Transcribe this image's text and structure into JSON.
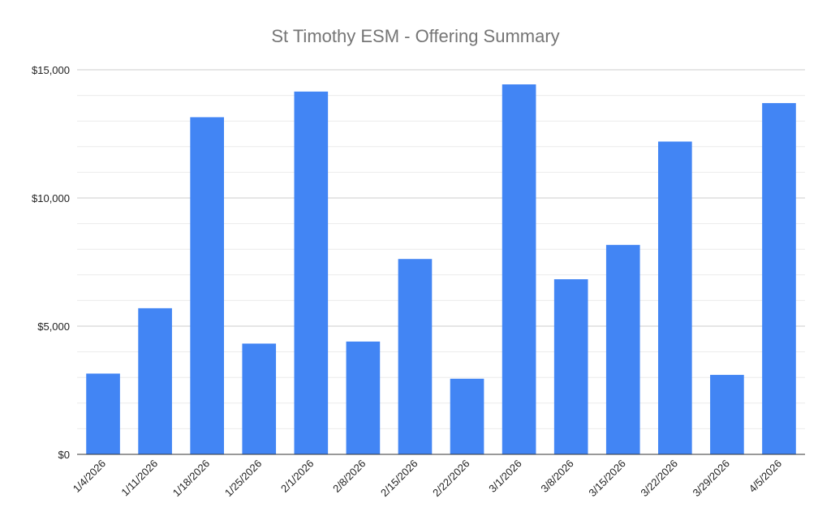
{
  "chart_data": {
    "type": "bar",
    "title": "St Timothy ESM - Offering Summary",
    "xlabel": "",
    "ylabel": "",
    "categories": [
      "1/4/2026",
      "1/11/2026",
      "1/18/2026",
      "1/25/2026",
      "2/1/2026",
      "2/8/2026",
      "2/15/2026",
      "2/22/2026",
      "3/1/2026",
      "3/8/2026",
      "3/15/2026",
      "3/22/2026",
      "3/29/2026",
      "4/5/2026"
    ],
    "values": [
      3150,
      5700,
      13150,
      4320,
      14150,
      4400,
      7620,
      2950,
      14430,
      6830,
      8170,
      12200,
      3100,
      13700
    ],
    "ylim": [
      0,
      15000
    ],
    "yticks": [
      0,
      5000,
      10000,
      15000
    ],
    "ytick_labels": [
      "$0",
      "$5,000",
      "$10,000",
      "$15,000"
    ],
    "grid": true,
    "legend": "none",
    "colors": {
      "bar": "#4285f4",
      "major_grid": "#cccccc",
      "minor_grid": "#ebebeb",
      "axis": "#333333"
    }
  }
}
